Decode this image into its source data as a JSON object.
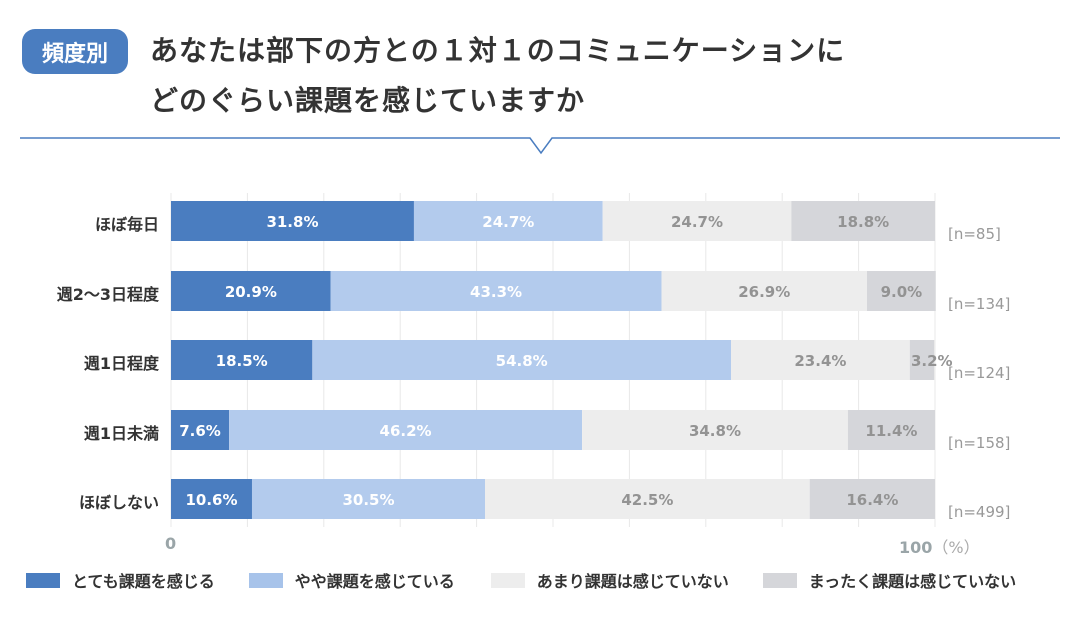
{
  "badge": "頻度別",
  "title_line1": "あなたは部下の方との１対１のコミュニケーションに",
  "title_line2": "どのぐらい課題を感じていますか",
  "colors": {
    "accent": "#4a7dc0",
    "series": [
      "#4a7dc0",
      "#b3cbed",
      "#ededed",
      "#d5d6da"
    ],
    "label_dark_text": "#ffffff",
    "label_light_text": "#939393"
  },
  "chart_data": {
    "type": "bar",
    "orientation": "horizontal-stacked-100",
    "title": "あなたは部下の方との１対１のコミュニケーションにどのぐらい課題を感じていますか",
    "categories": [
      "ほぼ毎日",
      "週2〜3日程度",
      "週1日程度",
      "週1日未満",
      "ほぼしない"
    ],
    "sample_sizes": [
      "[n=85]",
      "[n=134]",
      "[n=124]",
      "[n=158]",
      "[n=499]"
    ],
    "series": [
      {
        "name": "とても課題を感じる",
        "values": [
          31.8,
          20.9,
          18.5,
          7.6,
          10.6
        ]
      },
      {
        "name": "やや課題を感じている",
        "values": [
          24.7,
          43.3,
          54.8,
          46.2,
          30.5
        ]
      },
      {
        "name": "あまり課題は感じていない",
        "values": [
          24.7,
          26.9,
          23.4,
          34.8,
          42.5
        ]
      },
      {
        "name": "まったく課題は感じていない",
        "values": [
          18.8,
          9.0,
          3.2,
          11.4,
          16.4
        ]
      }
    ],
    "xlim": [
      0,
      100
    ],
    "x_tick_labels": [
      "0",
      "100"
    ],
    "x_unit": "（%）",
    "grid": true,
    "legend": "bottom"
  }
}
